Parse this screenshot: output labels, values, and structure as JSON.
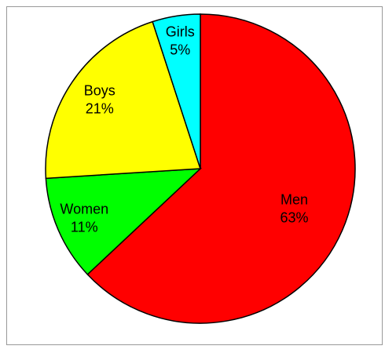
{
  "chart_data": {
    "type": "pie",
    "categories": [
      "Men",
      "Women",
      "Boys",
      "Girls"
    ],
    "values": [
      63,
      11,
      21,
      5
    ],
    "value_labels": [
      "63%",
      "11%",
      "21%",
      "5%"
    ],
    "colors": [
      "#ff0000",
      "#00ff00",
      "#ffff00",
      "#00ffff"
    ]
  }
}
